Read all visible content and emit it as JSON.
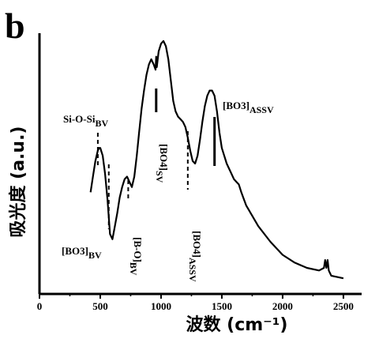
{
  "panel_label": "b",
  "chart_data": {
    "type": "line",
    "title": "",
    "xlabel": "波数 (cm⁻¹)",
    "ylabel": "吸光度 (a.u.)",
    "xlim": [
      0,
      2650
    ],
    "ylim": [
      0,
      1
    ],
    "xticks": [
      0,
      500,
      1000,
      1500,
      2000,
      2500
    ],
    "grid": false,
    "legend": "none",
    "series": [
      {
        "x": [
          420,
          440,
          460,
          480,
          490,
          500,
          520,
          540,
          560,
          580,
          600,
          620,
          640,
          660,
          680,
          700,
          720,
          740,
          760,
          780,
          800,
          820,
          840,
          860,
          880,
          900,
          920,
          940,
          955,
          960,
          965,
          980,
          1000,
          1020,
          1040,
          1060,
          1080,
          1100,
          1120,
          1140,
          1160,
          1180,
          1200,
          1220,
          1240,
          1260,
          1280,
          1300,
          1320,
          1340,
          1360,
          1380,
          1400,
          1420,
          1440,
          1460,
          1480,
          1500,
          1520,
          1540,
          1560,
          1580,
          1600,
          1620,
          1640,
          1660,
          1700,
          1800,
          1900,
          2000,
          2100,
          2200,
          2300,
          2340,
          2350,
          2360,
          2370,
          2380,
          2400,
          2500
        ],
        "y": [
          0.39,
          0.45,
          0.51,
          0.55,
          0.56,
          0.56,
          0.53,
          0.46,
          0.36,
          0.23,
          0.21,
          0.26,
          0.31,
          0.37,
          0.41,
          0.44,
          0.45,
          0.43,
          0.41,
          0.45,
          0.53,
          0.62,
          0.71,
          0.78,
          0.84,
          0.88,
          0.9,
          0.88,
          0.86,
          0.91,
          0.87,
          0.93,
          0.96,
          0.97,
          0.95,
          0.9,
          0.82,
          0.74,
          0.7,
          0.68,
          0.67,
          0.66,
          0.64,
          0.6,
          0.55,
          0.51,
          0.5,
          0.53,
          0.59,
          0.66,
          0.72,
          0.76,
          0.78,
          0.78,
          0.76,
          0.7,
          0.62,
          0.56,
          0.53,
          0.5,
          0.48,
          0.46,
          0.44,
          0.43,
          0.42,
          0.39,
          0.34,
          0.26,
          0.2,
          0.15,
          0.12,
          0.1,
          0.09,
          0.1,
          0.13,
          0.1,
          0.13,
          0.09,
          0.07,
          0.06
        ]
      }
    ],
    "annotations": [
      {
        "label": "Si-O-Si",
        "sub": "BV",
        "x": 480,
        "dashed": true,
        "orientation": "horizontal"
      },
      {
        "label": "[BO3]",
        "sub": "BV",
        "x": 570,
        "dashed": true,
        "orientation": "horizontal"
      },
      {
        "label": "[B-O]",
        "sub": "BV",
        "x": 730,
        "dashed": true,
        "orientation": "vertical"
      },
      {
        "label": "[BO4]",
        "sub": "SV",
        "x": 960,
        "dashed": false,
        "orientation": "vertical"
      },
      {
        "label": "[BO4]",
        "sub": "ASSV",
        "x": 1220,
        "dashed": true,
        "orientation": "vertical"
      },
      {
        "label": "[BO3]",
        "sub": "ASSV",
        "x": 1440,
        "dashed": false,
        "orientation": "horizontal"
      }
    ]
  }
}
